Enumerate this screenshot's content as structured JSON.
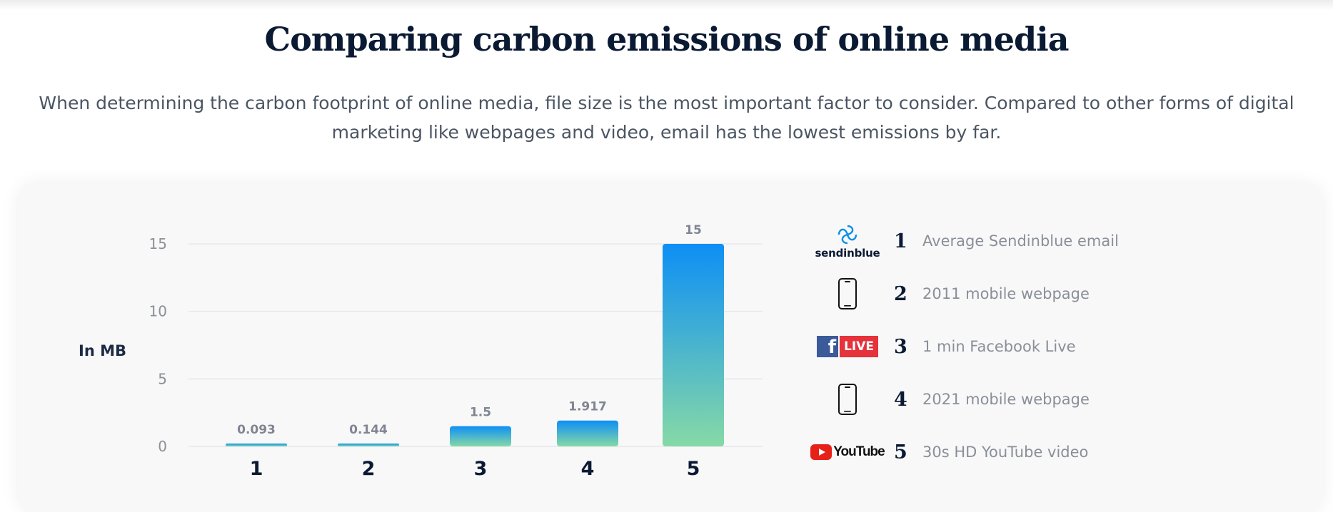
{
  "header": {
    "title": "Comparing carbon emissions of online media",
    "description": "When determining the carbon footprint of online media, file size is the most important factor to consider. Compared to other forms of digital marketing like webpages and video, email has the lowest emissions by far."
  },
  "chart_data": {
    "type": "bar",
    "title": "",
    "xlabel": "",
    "ylabel": "In MB",
    "categories": [
      "1",
      "2",
      "3",
      "4",
      "5"
    ],
    "values": [
      0.093,
      0.144,
      1.5,
      1.917,
      15
    ],
    "data_labels": [
      "0.093",
      "0.144",
      "1.5",
      "1.917",
      "15"
    ],
    "ylim": [
      0,
      15
    ],
    "yticks": [
      0,
      5,
      10,
      15
    ],
    "grid": true,
    "legend": "right",
    "bar_gradient": {
      "top": "#0d8ff5",
      "bottom": "#86d9a6"
    },
    "colors": {
      "grid": "#e6e7ea",
      "tick": "#8c9097",
      "value_label": "#7f8591",
      "category": "#0b1a33"
    }
  },
  "legend": {
    "items": [
      {
        "num": "1",
        "text": "Average Sendinblue email",
        "icon": "sendinblue-logo-icon",
        "brand": "sendinblue"
      },
      {
        "num": "2",
        "text": "2011 mobile webpage",
        "icon": "mobile-phone-icon"
      },
      {
        "num": "3",
        "text": "1 min Facebook Live",
        "icon": "facebook-live-icon",
        "brand_letter": "f",
        "brand": "LIVE"
      },
      {
        "num": "4",
        "text": "2021 mobile webpage",
        "icon": "mobile-phone-icon"
      },
      {
        "num": "5",
        "text": "30s HD YouTube video",
        "icon": "youtube-logo-icon",
        "brand": "YouTube"
      }
    ]
  }
}
